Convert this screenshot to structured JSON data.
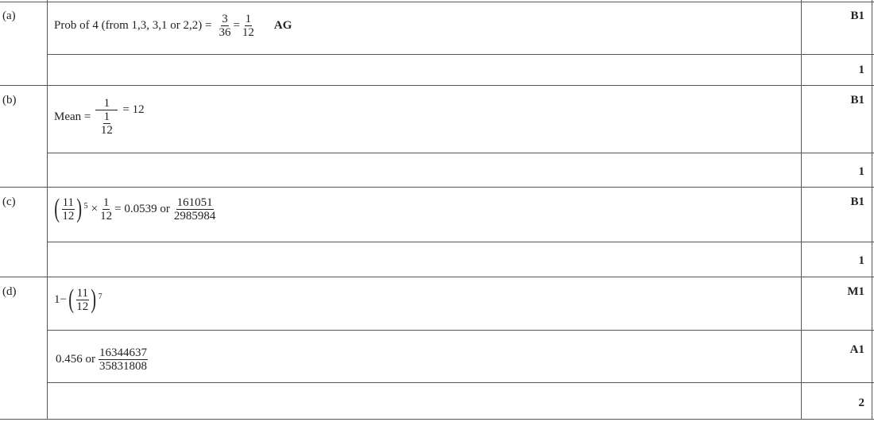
{
  "parts": [
    {
      "label": "(a)",
      "text": "Prob of 4 (from 1,3, 3,1 or 2,2) =",
      "f1_num": "3",
      "f1_den": "36",
      "eq": "=",
      "f2_num": "1",
      "f2_den": "12",
      "note": "AG",
      "mark": "B1",
      "total": "1"
    },
    {
      "label": "(b)",
      "prefix": "Mean =",
      "num": "1",
      "den_num": "1",
      "den_den": "12",
      "suffix": "= 12",
      "mark": "B1",
      "total": "1"
    },
    {
      "label": "(c)",
      "p_num": "11",
      "p_den": "12",
      "power": "5",
      "times": "×",
      "f_num": "1",
      "f_den": "12",
      "mid": "= 0.0539 or",
      "r_num": "161051",
      "r_den": "2985984",
      "mark": "B1",
      "total": "1"
    },
    {
      "label": "(d)",
      "one_minus": "1−",
      "p_num": "11",
      "p_den": "12",
      "power": "7",
      "mark1": "M1",
      "answer_prefix": "0.456 or",
      "r_num": "16344637",
      "r_den": "35831808",
      "mark2": "A1",
      "total": "2"
    }
  ]
}
